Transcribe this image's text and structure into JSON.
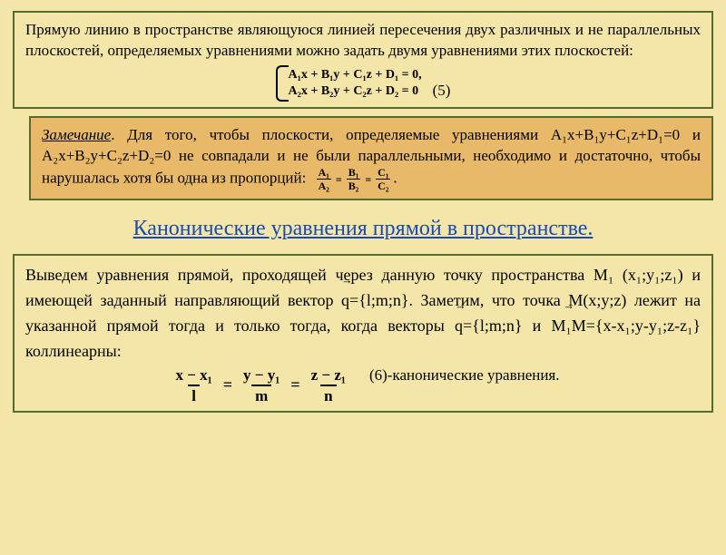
{
  "box1": {
    "p1": "Прямую линию в пространстве являющуюся линией пересечения двух различных и не параллельных плоскостей, определяемых уравнениями можно задать двумя уравнениями этих плоскостей:",
    "eq_line1": "A₁x + B₁y + C₁z + D₁ = 0,",
    "eq_line2": "A₂x + B₂y + C₂z + D₂ = 0",
    "eq_num": "(5)"
  },
  "box2": {
    "lead": "Замечание",
    "rest": ". Для того, чтобы плоскости, определяемые уравнениями A₁x+B₁y+C₁z+D₁=0 и A₂x+B₂y+C₂z+D₂=0 не совпадали и не были параллельными, необходимо и достаточно, чтобы нарушалась хотя бы одна из пропорций:",
    "frac": {
      "n1": "A₁",
      "d1": "A₂",
      "n2": "B₁",
      "d2": "B₂",
      "n3": "C₁",
      "d3": "C₂"
    },
    "dot": "."
  },
  "heading": "Канонические уравнения прямой в пространстве.",
  "box3": {
    "text_html": "Выведем уравнения прямой, проходящей через данную точку пространства M₁ (x₁;y₁;z₁) и имеющей заданный направляющий вектор <span class='vec'>q</span>={l;m;n}. Заметим, что точка M(x;y;z) лежит на указанной прямой тогда и только тогда, когда векторы <span class='vec'>q</span>={l;m;n} и <span class='vec'>M₁M</span>={x-x₁;y-y₁;z-z₁} коллинеарны:",
    "canon": {
      "n1": "x − x₁",
      "d1": "l",
      "n2": "y − y₁",
      "d2": "m",
      "n3": "z − z₁",
      "d3": "n"
    },
    "label": "(6)-канонические уравнения."
  }
}
